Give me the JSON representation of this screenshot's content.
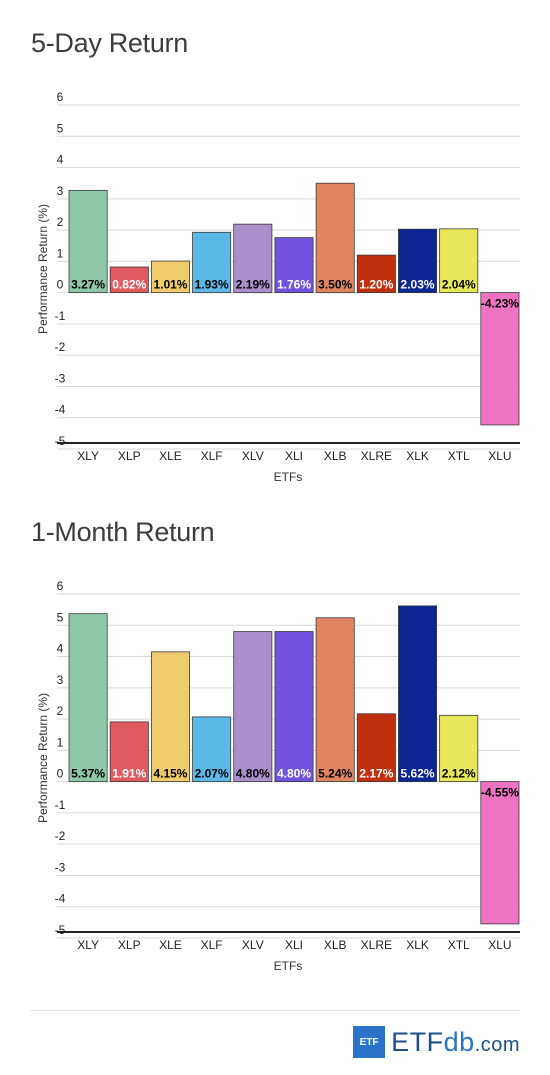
{
  "chart_data": [
    {
      "type": "bar",
      "title": "5-Day Return",
      "xlabel": "ETFs",
      "ylabel": "Performance Return (%)",
      "ylim": [
        -5,
        6
      ],
      "yticks": [
        6,
        5,
        4,
        3,
        2,
        1,
        0,
        -1,
        -2,
        -3,
        -4,
        -5
      ],
      "grid": true,
      "categories": [
        "XLY",
        "XLP",
        "XLE",
        "XLF",
        "XLV",
        "XLI",
        "XLB",
        "XLRE",
        "XLK",
        "XTL",
        "XLU"
      ],
      "values": [
        3.27,
        0.82,
        1.01,
        1.93,
        2.19,
        1.76,
        3.5,
        1.2,
        2.03,
        2.04,
        -4.23
      ],
      "value_labels": [
        "3.27%",
        "0.82%",
        "1.01%",
        "1.93%",
        "2.19%",
        "1.76%",
        "3.50%",
        "1.20%",
        "2.03%",
        "2.04%",
        "-4.23%"
      ]
    },
    {
      "type": "bar",
      "title": "1-Month Return",
      "xlabel": "ETFs",
      "ylabel": "Performance Return (%)",
      "ylim": [
        -5,
        6
      ],
      "yticks": [
        6,
        5,
        4,
        3,
        2,
        1,
        0,
        -1,
        -2,
        -3,
        -4,
        -5
      ],
      "grid": true,
      "categories": [
        "XLY",
        "XLP",
        "XLE",
        "XLF",
        "XLV",
        "XLI",
        "XLB",
        "XLRE",
        "XLK",
        "XTL",
        "XLU"
      ],
      "values": [
        5.37,
        1.91,
        4.15,
        2.07,
        4.8,
        4.8,
        5.24,
        2.17,
        5.62,
        2.12,
        -4.55
      ],
      "value_labels": [
        "5.37%",
        "1.91%",
        "4.15%",
        "2.07%",
        "4.80%",
        "4.80%",
        "5.24%",
        "2.17%",
        "5.62%",
        "2.12%",
        "-4.55%"
      ]
    }
  ],
  "bar_colors": [
    "#8fc8a8",
    "#e05a5f",
    "#eecb6c",
    "#5cb8e6",
    "#aa8fcb",
    "#7052dd",
    "#e18462",
    "#c1300e",
    "#0b2593",
    "#e7e95b",
    "#ee73c1"
  ],
  "label_colors": [
    "#000000",
    "#ffffff",
    "#000000",
    "#000000",
    "#000000",
    "#ffffff",
    "#000000",
    "#ffffff",
    "#ffffff",
    "#000000",
    "#000000"
  ],
  "footer": {
    "logo_box": "ETF",
    "logo_main": "ETF",
    "logo_db": "db",
    "logo_com": ".com"
  }
}
